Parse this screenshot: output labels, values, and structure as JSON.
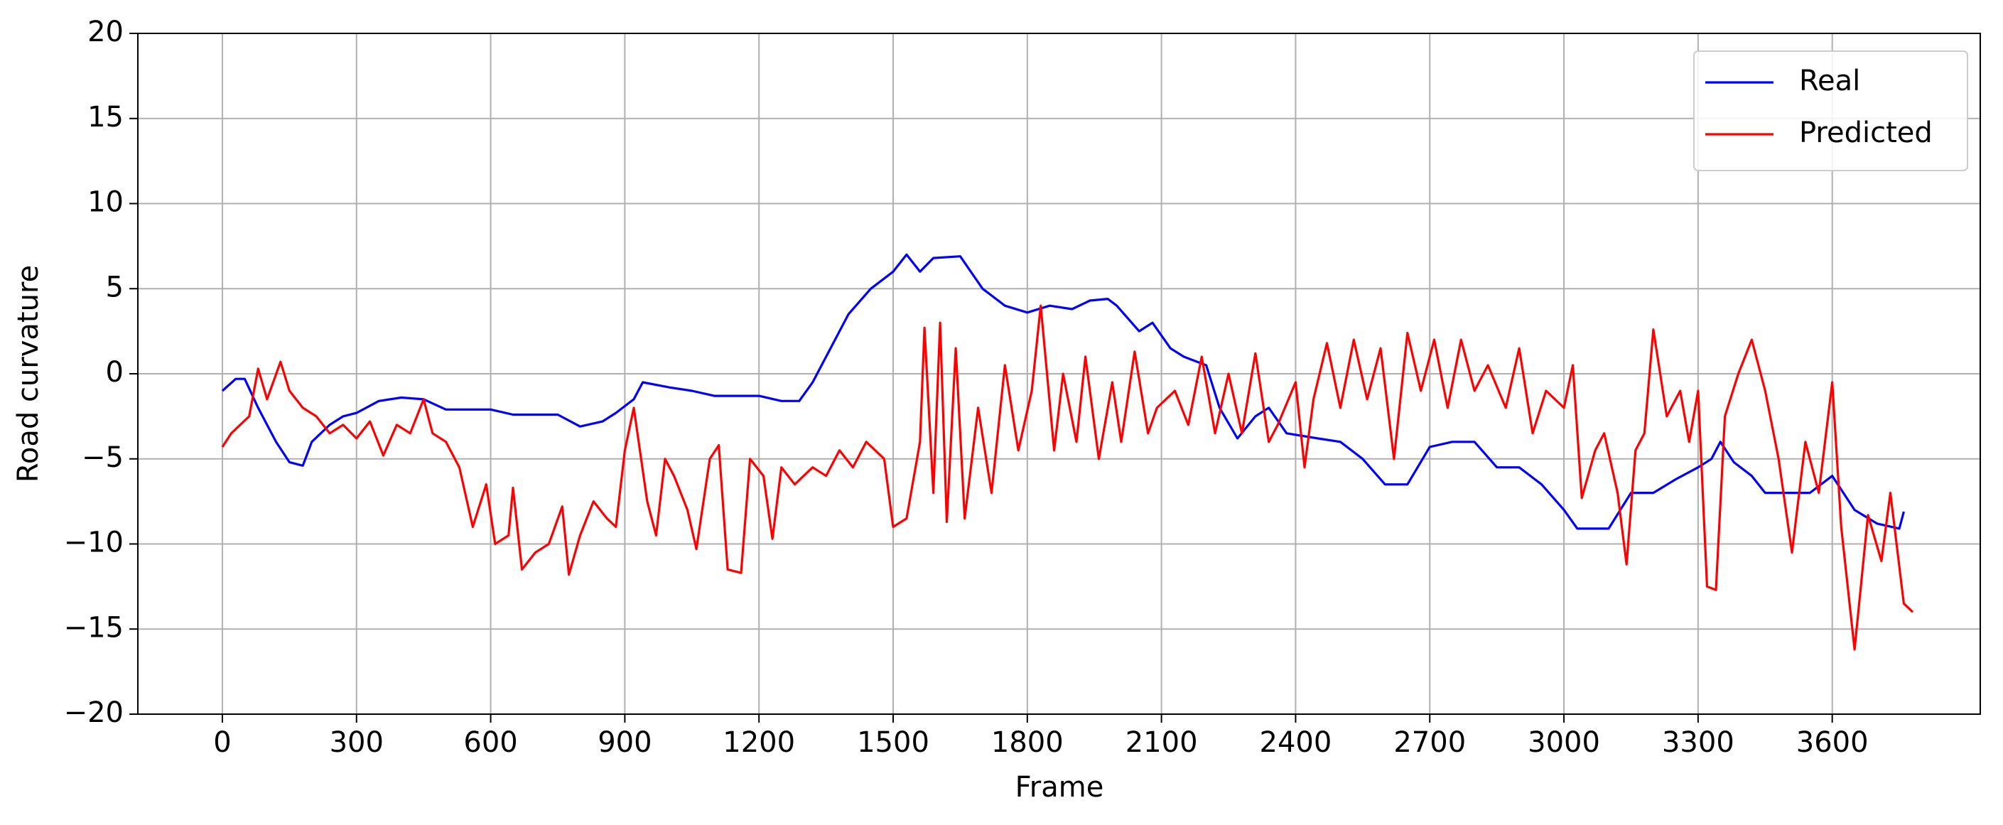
{
  "chart_data": {
    "type": "line",
    "xlabel": "Frame",
    "ylabel": "Road curvature",
    "xlim": [
      -189,
      3931
    ],
    "ylim": [
      -20,
      20
    ],
    "xticks": [
      0,
      300,
      600,
      900,
      1200,
      1500,
      1800,
      2100,
      2400,
      2700,
      3000,
      3300,
      3600
    ],
    "yticks": [
      {
        "value": -20,
        "label": "−20"
      },
      {
        "value": -15,
        "label": "−15"
      },
      {
        "value": -10,
        "label": "−10"
      },
      {
        "value": -5,
        "label": "−5"
      },
      0,
      5,
      10,
      15,
      20
    ],
    "grid": true,
    "legend": "upper right",
    "series": [
      {
        "name": "Real",
        "color": "#0000ff",
        "x": [
          0,
          30,
          50,
          80,
          120,
          150,
          180,
          200,
          240,
          270,
          300,
          350,
          400,
          450,
          500,
          550,
          600,
          650,
          700,
          750,
          800,
          850,
          880,
          920,
          940,
          1000,
          1050,
          1100,
          1150,
          1200,
          1250,
          1290,
          1320,
          1360,
          1400,
          1450,
          1500,
          1530,
          1560,
          1590,
          1650,
          1700,
          1750,
          1800,
          1850,
          1900,
          1940,
          1980,
          2000,
          2050,
          2080,
          2120,
          2150,
          2200,
          2230,
          2270,
          2310,
          2340,
          2380,
          2450,
          2500,
          2550,
          2600,
          2650,
          2700,
          2750,
          2800,
          2850,
          2900,
          2950,
          3000,
          3030,
          3100,
          3150,
          3200,
          3250,
          3300,
          3330,
          3350,
          3380,
          3420,
          3450,
          3500,
          3550,
          3600,
          3650,
          3700,
          3750,
          3760
        ],
        "values": [
          -1,
          -0.3,
          -0.3,
          -2,
          -4,
          -5.2,
          -5.4,
          -4,
          -3,
          -2.5,
          -2.3,
          -1.6,
          -1.4,
          -1.5,
          -2.1,
          -2.1,
          -2.1,
          -2.4,
          -2.4,
          -2.4,
          -3.1,
          -2.8,
          -2.3,
          -1.5,
          -0.5,
          -0.8,
          -1,
          -1.3,
          -1.3,
          -1.3,
          -1.6,
          -1.6,
          -0.5,
          1.5,
          3.5,
          5,
          6,
          7,
          6,
          6.8,
          6.9,
          5,
          4,
          3.6,
          4,
          3.8,
          4.3,
          4.4,
          4,
          2.5,
          3,
          1.5,
          1,
          0.5,
          -2,
          -3.8,
          -2.5,
          -2,
          -3.5,
          -3.8,
          -4,
          -5,
          -6.5,
          -6.5,
          -4.3,
          -4,
          -4,
          -5.5,
          -5.5,
          -6.5,
          -8,
          -9.1,
          -9.1,
          -7,
          -7,
          -6.2,
          -5.5,
          -5,
          -4,
          -5.2,
          -6,
          -7,
          -7,
          -7,
          -6,
          -8,
          -8.8,
          -9.1,
          -8.1
        ]
      },
      {
        "name": "Predicted",
        "color": "#ff0000",
        "x": [
          0,
          20,
          60,
          80,
          100,
          130,
          150,
          180,
          210,
          240,
          270,
          300,
          330,
          360,
          390,
          420,
          450,
          470,
          500,
          530,
          560,
          590,
          610,
          640,
          650,
          670,
          700,
          730,
          760,
          775,
          800,
          830,
          860,
          880,
          900,
          920,
          950,
          970,
          990,
          1010,
          1040,
          1060,
          1090,
          1110,
          1130,
          1160,
          1180,
          1210,
          1230,
          1250,
          1280,
          1320,
          1350,
          1380,
          1410,
          1440,
          1480,
          1500,
          1530,
          1560,
          1570,
          1590,
          1605,
          1620,
          1640,
          1660,
          1690,
          1720,
          1750,
          1780,
          1810,
          1830,
          1860,
          1880,
          1910,
          1930,
          1960,
          1990,
          2010,
          2040,
          2070,
          2090,
          2130,
          2160,
          2190,
          2220,
          2250,
          2280,
          2310,
          2340,
          2360,
          2400,
          2420,
          2440,
          2470,
          2500,
          2530,
          2560,
          2590,
          2620,
          2650,
          2680,
          2710,
          2740,
          2770,
          2800,
          2830,
          2870,
          2900,
          2930,
          2960,
          3000,
          3020,
          3040,
          3070,
          3090,
          3120,
          3140,
          3160,
          3180,
          3200,
          3230,
          3260,
          3280,
          3300,
          3320,
          3340,
          3360,
          3390,
          3420,
          3450,
          3480,
          3510,
          3540,
          3570,
          3600,
          3620,
          3650,
          3680,
          3710,
          3730,
          3760,
          3780
        ],
        "values": [
          -4.3,
          -3.5,
          -2.5,
          0.3,
          -1.5,
          0.7,
          -1,
          -2,
          -2.5,
          -3.5,
          -3,
          -3.8,
          -2.8,
          -4.8,
          -3,
          -3.5,
          -1.5,
          -3.5,
          -4,
          -5.5,
          -9,
          -6.5,
          -10,
          -9.5,
          -6.7,
          -11.5,
          -10.5,
          -10,
          -7.8,
          -11.8,
          -9.5,
          -7.5,
          -8.5,
          -9,
          -4.5,
          -2,
          -7.5,
          -9.5,
          -5,
          -6,
          -8,
          -10.3,
          -5,
          -4.2,
          -11.5,
          -11.7,
          -5,
          -6,
          -9.7,
          -5.5,
          -6.5,
          -5.5,
          -6,
          -4.5,
          -5.5,
          -4,
          -5,
          -9,
          -8.5,
          -4,
          2.7,
          -7,
          3,
          -8.7,
          1.5,
          -8.5,
          -2,
          -7,
          0.5,
          -4.5,
          -1,
          4,
          -4.5,
          0,
          -4,
          1,
          -5,
          -0.5,
          -4,
          1.3,
          -3.5,
          -2,
          -1,
          -3,
          1,
          -3.5,
          0,
          -3.5,
          1.2,
          -4,
          -3,
          -0.5,
          -5.5,
          -1.5,
          1.8,
          -2,
          2,
          -1.5,
          1.5,
          -5,
          2.4,
          -1,
          2,
          -2,
          2,
          -1,
          0.5,
          -2,
          1.5,
          -3.5,
          -1,
          -2,
          0.5,
          -7.3,
          -4.5,
          -3.5,
          -7,
          -11.2,
          -4.5,
          -3.5,
          2.6,
          -2.5,
          -1,
          -4,
          -1,
          -12.5,
          -12.7,
          -2.5,
          0,
          2,
          -1,
          -5,
          -10.5,
          -4,
          -7,
          -0.5,
          -9,
          -16.2,
          -8.3,
          -11,
          -7,
          -13.5,
          -14
        ]
      }
    ]
  }
}
